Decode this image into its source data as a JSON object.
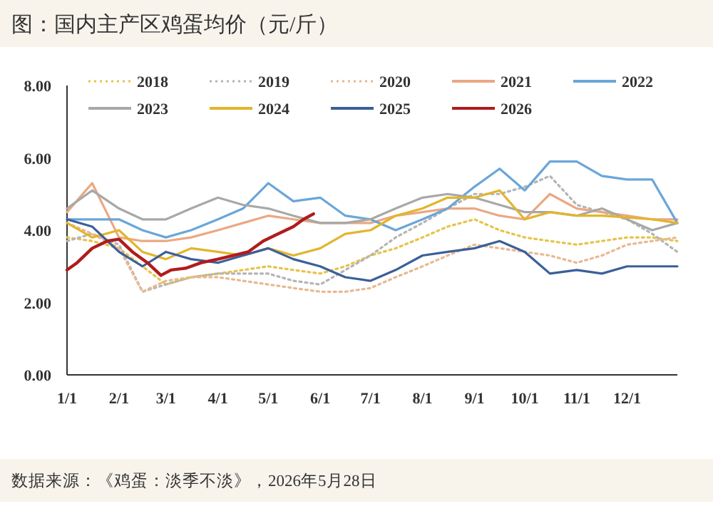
{
  "chart_data": {
    "type": "line",
    "title": "图：国内主产区鸡蛋均价（元/斤）",
    "annotations": [
      "数据来源：《鸡蛋：淡季不淡》，2026年5月28日"
    ],
    "x": [
      "--01-01",
      "--01-16",
      "--02-01",
      "--02-15",
      "--03-01",
      "--03-16",
      "--04-01",
      "--04-16",
      "--05-01",
      "--05-16",
      "--06-01",
      "--06-16",
      "--07-01",
      "--07-16",
      "--08-01",
      "--08-16",
      "--09-01",
      "--09-16",
      "--10-01",
      "--10-16",
      "--11-01",
      "--11-16",
      "--12-01",
      "--12-16",
      "--12-31"
    ],
    "xlim": [
      "--01-01",
      "--12-31"
    ],
    "xticks": [
      {
        "value": "--01-01",
        "label": "1/1"
      },
      {
        "value": "--02-01",
        "label": "2/1"
      },
      {
        "value": "--03-01",
        "label": "3/1"
      },
      {
        "value": "--04-01",
        "label": "4/1"
      },
      {
        "value": "--05-01",
        "label": "5/1"
      },
      {
        "value": "--06-01",
        "label": "6/1"
      },
      {
        "value": "--07-01",
        "label": "7/1"
      },
      {
        "value": "--08-01",
        "label": "8/1"
      },
      {
        "value": "--09-01",
        "label": "9/1"
      },
      {
        "value": "--10-01",
        "label": "10/1"
      },
      {
        "value": "--11-01",
        "label": "11/1"
      },
      {
        "value": "--12-01",
        "label": "12/1"
      }
    ],
    "ylim": [
      0,
      8
    ],
    "yticks": [
      {
        "value": 0,
        "label": "0.00"
      },
      {
        "value": 2,
        "label": "2.00"
      },
      {
        "value": 4,
        "label": "4.00"
      },
      {
        "value": 6,
        "label": "6.00"
      },
      {
        "value": 8,
        "label": "8.00"
      }
    ],
    "grid": false,
    "legend": "top",
    "marker": "none",
    "series": [
      {
        "name": "2018",
        "color": "#e6c34a",
        "line_style": "dotted",
        "values": [
          3.8,
          3.7,
          3.5,
          3.0,
          2.5,
          2.7,
          2.8,
          2.9,
          3.0,
          2.9,
          2.8,
          3.0,
          3.3,
          3.5,
          3.8,
          4.1,
          4.3,
          4.0,
          3.8,
          3.7,
          3.6,
          3.7,
          3.8,
          3.8,
          3.7
        ]
      },
      {
        "name": "2019",
        "color": "#b4b4b4",
        "line_style": "dotted",
        "values": [
          3.7,
          3.9,
          3.6,
          2.3,
          2.5,
          2.7,
          2.8,
          2.8,
          2.8,
          2.6,
          2.5,
          2.9,
          3.3,
          3.8,
          4.2,
          4.6,
          5.0,
          5.0,
          5.2,
          5.5,
          4.7,
          4.5,
          4.3,
          3.9,
          3.4
        ]
      },
      {
        "name": "2020",
        "color": "#e8b890",
        "line_style": "dotted",
        "values": [
          4.2,
          3.9,
          3.5,
          2.3,
          2.6,
          2.7,
          2.7,
          2.6,
          2.5,
          2.4,
          2.3,
          2.3,
          2.4,
          2.7,
          3.0,
          3.3,
          3.6,
          3.5,
          3.4,
          3.3,
          3.1,
          3.3,
          3.6,
          3.7,
          3.8
        ]
      },
      {
        "name": "2021",
        "color": "#eba882",
        "line_style": "solid",
        "values": [
          4.5,
          5.3,
          3.8,
          3.7,
          3.7,
          3.8,
          4.0,
          4.2,
          4.4,
          4.3,
          4.2,
          4.2,
          4.2,
          4.4,
          4.5,
          4.6,
          4.6,
          4.4,
          4.3,
          5.0,
          4.6,
          4.5,
          4.4,
          4.3,
          4.3
        ]
      },
      {
        "name": "2022",
        "color": "#6aa6d8",
        "line_style": "solid",
        "values": [
          4.3,
          4.3,
          4.3,
          4.0,
          3.8,
          4.0,
          4.3,
          4.6,
          5.3,
          4.8,
          4.9,
          4.4,
          4.3,
          4.0,
          4.3,
          4.6,
          5.2,
          5.7,
          5.1,
          5.9,
          5.9,
          5.5,
          5.4,
          5.4,
          4.2
        ]
      },
      {
        "name": "2023",
        "color": "#a8a8a8",
        "line_style": "solid",
        "values": [
          4.6,
          5.1,
          4.6,
          4.3,
          4.3,
          4.6,
          4.9,
          4.7,
          4.6,
          4.4,
          4.2,
          4.2,
          4.3,
          4.6,
          4.9,
          5.0,
          4.9,
          4.7,
          4.5,
          4.5,
          4.4,
          4.6,
          4.3,
          4.0,
          4.2
        ]
      },
      {
        "name": "2024",
        "color": "#e2b52c",
        "line_style": "solid",
        "values": [
          4.2,
          3.8,
          4.0,
          3.4,
          3.2,
          3.5,
          3.4,
          3.3,
          3.5,
          3.3,
          3.5,
          3.9,
          4.0,
          4.4,
          4.6,
          4.9,
          4.9,
          5.1,
          4.3,
          4.5,
          4.4,
          4.4,
          4.35,
          4.3,
          4.2
        ]
      },
      {
        "name": "2025",
        "color": "#3b5f99",
        "line_style": "solid",
        "values": [
          4.3,
          4.1,
          3.4,
          3.0,
          3.4,
          3.2,
          3.1,
          3.3,
          3.5,
          3.2,
          3.0,
          2.7,
          2.6,
          2.9,
          3.3,
          3.4,
          3.5,
          3.7,
          3.4,
          2.8,
          2.9,
          2.8,
          3.0,
          3.0,
          3.0
        ]
      },
      {
        "name": "2026",
        "color": "#b01c1c",
        "line_style": "solid",
        "x": [
          "--01-01",
          "--01-07",
          "--01-16",
          "--01-25",
          "--02-01",
          "--02-09",
          "--02-18",
          "--02-26",
          "--03-04",
          "--03-13",
          "--03-22",
          "--04-01",
          "--04-10",
          "--04-19",
          "--04-28",
          "--05-07",
          "--05-16",
          "--05-22",
          "--05-28"
        ],
        "values": [
          2.9,
          3.1,
          3.5,
          3.7,
          3.75,
          3.4,
          3.1,
          2.75,
          2.9,
          2.95,
          3.1,
          3.2,
          3.3,
          3.4,
          3.7,
          3.9,
          4.1,
          4.3,
          4.45
        ]
      }
    ]
  }
}
